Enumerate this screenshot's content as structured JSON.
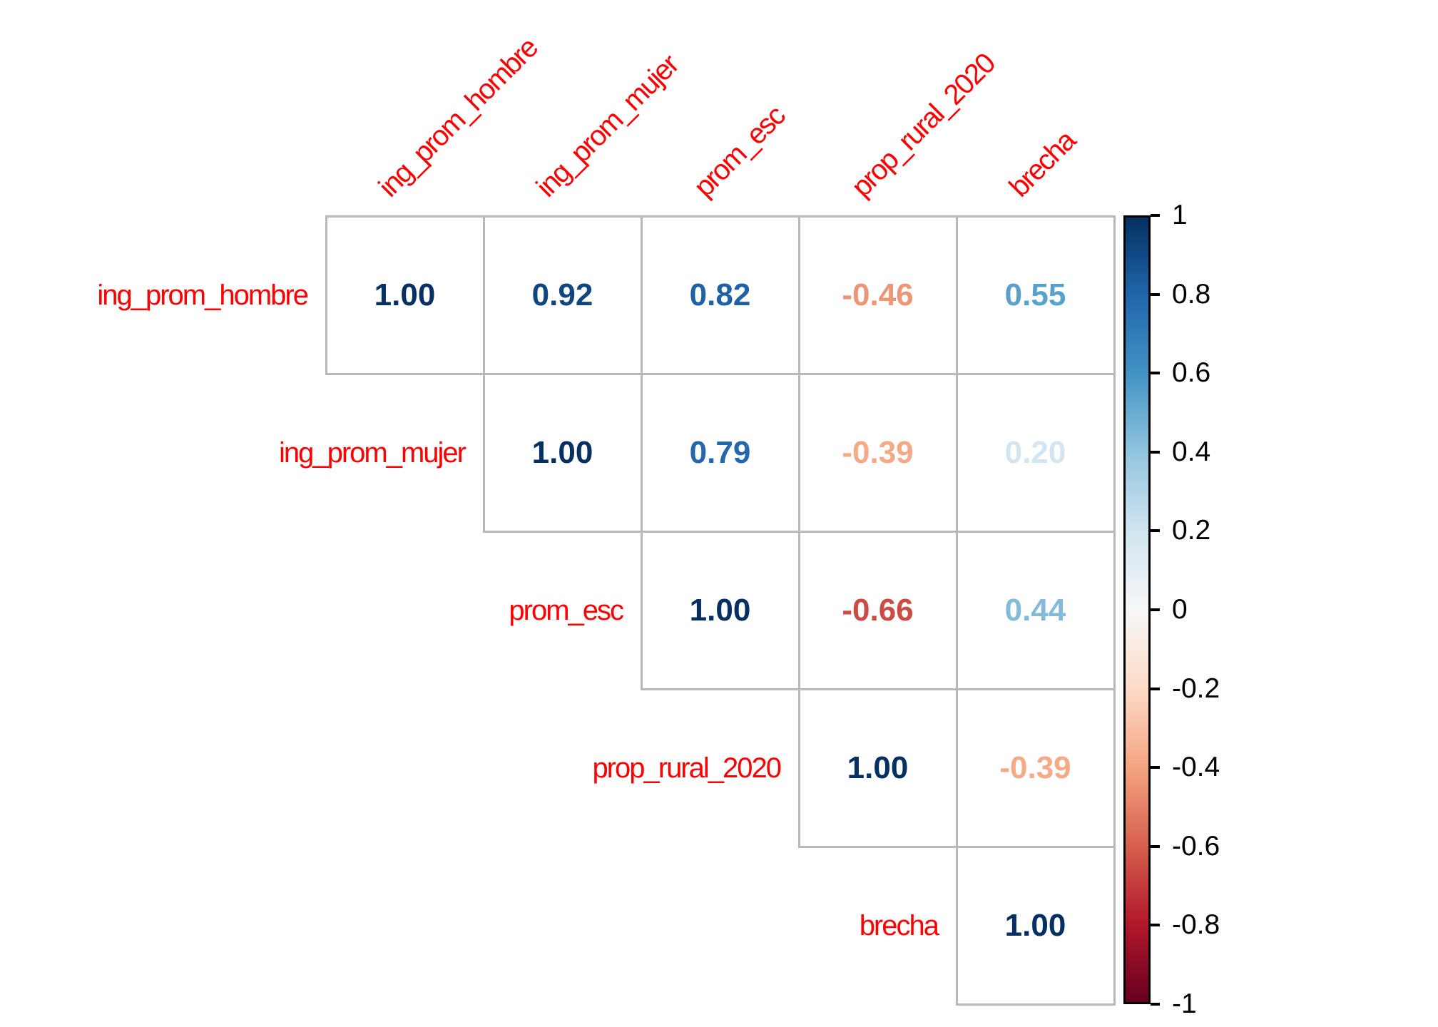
{
  "chart_data": {
    "type": "heatmap",
    "subtype": "correlation-matrix-upper-triangle",
    "title": "",
    "variables": [
      "ing_prom_hombre",
      "ing_prom_mujer",
      "prom_esc",
      "prop_rural_2020",
      "brecha"
    ],
    "matrix": [
      [
        1.0,
        0.92,
        0.82,
        -0.46,
        0.55
      ],
      [
        null,
        1.0,
        0.79,
        -0.39,
        0.2
      ],
      [
        null,
        null,
        1.0,
        -0.66,
        0.44
      ],
      [
        null,
        null,
        null,
        1.0,
        -0.39
      ],
      [
        null,
        null,
        null,
        null,
        1.0
      ]
    ],
    "value_range": [
      -1,
      1
    ],
    "legend_position": "right",
    "grid": true
  },
  "variables": [
    "ing_prom_hombre",
    "ing_prom_mujer",
    "prom_esc",
    "prop_rural_2020",
    "brecha"
  ],
  "cells": [
    {
      "r": 0,
      "c": 0,
      "text": "1.00",
      "color": "#053061"
    },
    {
      "r": 0,
      "c": 1,
      "text": "0.92",
      "color": "#10467F"
    },
    {
      "r": 0,
      "c": 2,
      "text": "0.82",
      "color": "#1E61A4"
    },
    {
      "r": 0,
      "c": 3,
      "text": "-0.46",
      "color": "#ED9677"
    },
    {
      "r": 0,
      "c": 4,
      "text": "0.55",
      "color": "#58A1CB"
    },
    {
      "r": 1,
      "c": 1,
      "text": "1.00",
      "color": "#053061"
    },
    {
      "r": 1,
      "c": 2,
      "text": "0.79",
      "color": "#2368AD"
    },
    {
      "r": 1,
      "c": 3,
      "text": "-0.39",
      "color": "#F4A987"
    },
    {
      "r": 1,
      "c": 4,
      "text": "0.20",
      "color": "#D2E5F0"
    },
    {
      "r": 2,
      "c": 2,
      "text": "1.00",
      "color": "#053061"
    },
    {
      "r": 2,
      "c": 3,
      "text": "-0.66",
      "color": "#CC4B44"
    },
    {
      "r": 2,
      "c": 4,
      "text": "0.44",
      "color": "#83BBD9"
    },
    {
      "r": 3,
      "c": 3,
      "text": "1.00",
      "color": "#053061"
    },
    {
      "r": 3,
      "c": 4,
      "text": "-0.39",
      "color": "#F4A987"
    },
    {
      "r": 4,
      "c": 4,
      "text": "1.00",
      "color": "#053061"
    }
  ],
  "colorbar": {
    "ticks": [
      "1",
      "0.8",
      "0.6",
      "0.4",
      "0.2",
      "0",
      "-0.2",
      "-0.4",
      "-0.6",
      "-0.8",
      "-1"
    ],
    "gradient": [
      "#053061",
      "#2166AC",
      "#4393C3",
      "#92C5DE",
      "#D1E5F0",
      "#F7F7F7",
      "#FDDBC7",
      "#F4A582",
      "#D6604D",
      "#B2182B",
      "#67001F"
    ]
  },
  "colors": {
    "label_red": "#FF0000",
    "grid_line": "#B9B9B9",
    "tick_text": "#000000",
    "colorbar_border": "#000000",
    "background": "#FFFFFF"
  }
}
